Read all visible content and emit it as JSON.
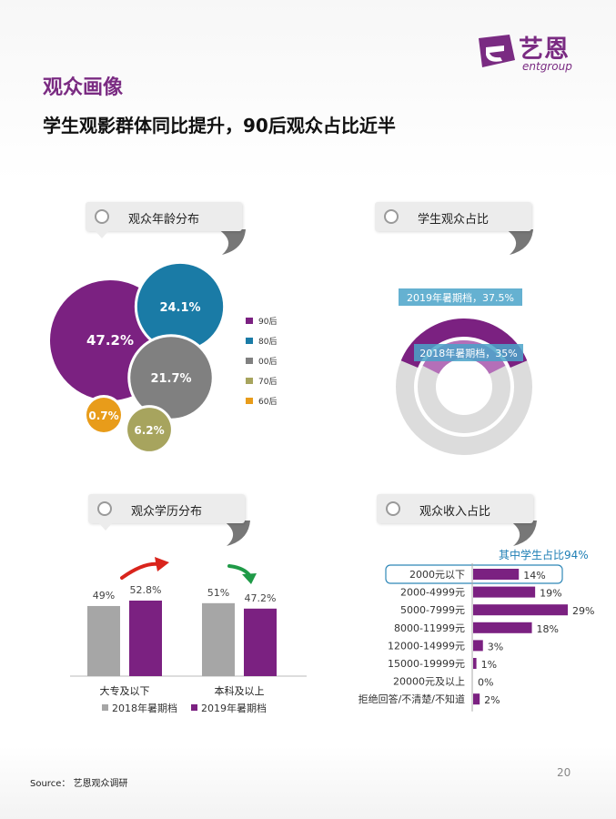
{
  "brand": {
    "name_cn": "艺恩",
    "name_en": "entgroup"
  },
  "title": "观众画像",
  "subtitle": "学生观影群体同比提升，90后观众占比近半",
  "panels": {
    "age": "观众年龄分布",
    "student": "学生观众占比",
    "education": "观众学历分布",
    "income": "观众收入占比"
  },
  "source": "Source： 艺恩观众调研",
  "page_number": "20",
  "chart_data": [
    {
      "type": "bubble",
      "title": "观众年龄分布",
      "categories": [
        "90后",
        "80后",
        "00后",
        "70后",
        "60后"
      ],
      "values": [
        47.2,
        24.1,
        21.7,
        6.2,
        0.7
      ],
      "labels": [
        "47.2%",
        "24.1%",
        "21.7%",
        "6.2%",
        "0.7%"
      ],
      "colors": [
        "#7b2181",
        "#1a7ba6",
        "#808080",
        "#a7a45e",
        "#e89c1a"
      ],
      "legend_position": "right"
    },
    {
      "type": "gauge",
      "title": "学生观众占比",
      "series": [
        {
          "name": "2019年暑期档",
          "value": 37.5,
          "label": "2019年暑期档，37.5%",
          "color": "#7b2181"
        },
        {
          "name": "2018年暑期档",
          "value": 35,
          "label": "2018年暑期档，35%",
          "color": "#b46fb8"
        }
      ],
      "track_color": "#dcdcdc"
    },
    {
      "type": "bar",
      "title": "观众学历分布",
      "categories": [
        "大专及以下",
        "本科及以上"
      ],
      "series": [
        {
          "name": "2018年暑期档",
          "values": [
            49,
            51
          ],
          "labels": [
            "49%",
            "51%"
          ],
          "color": "#a6a6a6"
        },
        {
          "name": "2019年暑期档",
          "values": [
            52.8,
            47.2
          ],
          "labels": [
            "52.8%",
            "47.2%"
          ],
          "color": "#7b2181"
        }
      ],
      "trend_arrows": [
        "up",
        "down"
      ],
      "legend_position": "bottom"
    },
    {
      "type": "bar",
      "orientation": "horizontal",
      "title": "观众收入占比",
      "categories": [
        "2000元以下",
        "2000-4999元",
        "5000-7999元",
        "8000-11999元",
        "12000-14999元",
        "15000-19999元",
        "20000元及以上",
        "拒绝回答/不清楚/不知道"
      ],
      "values": [
        14,
        19,
        29,
        18,
        3,
        1,
        0,
        2
      ],
      "labels": [
        "14%",
        "19%",
        "29%",
        "18%",
        "3%",
        "1%",
        "0%",
        "2%"
      ],
      "color": "#7b2181",
      "annotation": "其中学生占比94%",
      "highlight_index": 0
    }
  ]
}
